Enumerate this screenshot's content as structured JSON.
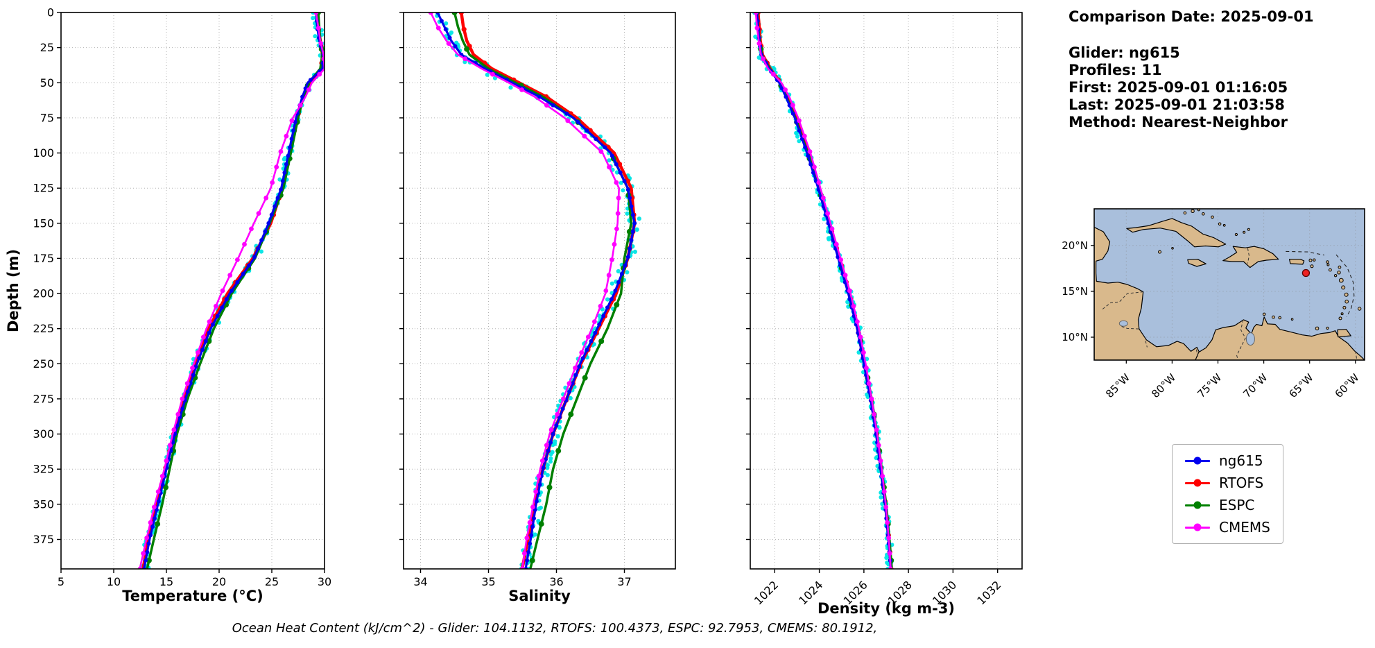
{
  "info": {
    "comparison_date": "Comparison Date: 2025-09-01",
    "glider": "Glider: ng615",
    "profiles": "Profiles: 11",
    "first": "First: 2025-09-01 01:16:05",
    "last": "Last: 2025-09-01 21:03:58",
    "method": "Method: Nearest-Neighbor"
  },
  "caption": {
    "text": "Ocean Heat Content (kJ/cm^2) - Glider: 104.1132,  RTOFS: 100.4373,  ESPC: 92.7953,  CMEMS: 80.1912,"
  },
  "ocean_heat_content": {
    "glider": 104.1132,
    "rtofs": 100.4373,
    "espc": 92.7953,
    "cmems": 80.1912
  },
  "legend": {
    "items": [
      {
        "label": "ng615",
        "color": "#0000ee"
      },
      {
        "label": "RTOFS",
        "color": "#ff0000"
      },
      {
        "label": "ESPC",
        "color": "#008000"
      },
      {
        "label": "CMEMS",
        "color": "#ff00ff"
      }
    ]
  },
  "chart_data": {
    "type": "line",
    "kind": "glider-model-profile-comparison",
    "ylabel": "Depth (m)",
    "ylim": [
      0,
      396
    ],
    "yticks": [
      0,
      25,
      50,
      75,
      100,
      125,
      150,
      175,
      200,
      225,
      250,
      275,
      300,
      325,
      350,
      375
    ],
    "scatter_color": "#00e5e5",
    "depths": [
      0,
      10,
      20,
      30,
      40,
      50,
      60,
      75,
      100,
      125,
      150,
      175,
      200,
      225,
      250,
      275,
      300,
      325,
      350,
      375,
      395
    ],
    "panels": [
      {
        "id": "temperature",
        "xlabel": "Temperature (°C)",
        "xlim": [
          5,
          30
        ],
        "xticks": [
          5,
          10,
          15,
          20,
          25,
          30
        ],
        "rotate_xticks": false,
        "series": [
          {
            "name": "ng615",
            "color": "#0000ee",
            "values": [
              29.2,
              29.3,
              29.5,
              29.9,
              29.8,
              28.4,
              27.9,
              27.3,
              26.6,
              25.9,
              24.7,
              23.3,
              21.0,
              19.2,
              17.9,
              16.8,
              15.8,
              15.0,
              14.2,
              13.4,
              12.9
            ]
          },
          {
            "name": "RTOFS",
            "color": "#ff0000",
            "values": [
              29.3,
              29.4,
              29.6,
              29.8,
              29.7,
              28.6,
              28.0,
              27.4,
              26.7,
              26.0,
              24.9,
              23.2,
              20.8,
              19.0,
              17.8,
              16.7,
              15.7,
              14.9,
              14.1,
              13.3,
              12.8
            ]
          },
          {
            "name": "ESPC",
            "color": "#008000",
            "values": [
              29.4,
              29.5,
              29.6,
              29.8,
              29.6,
              28.5,
              28.0,
              27.5,
              26.8,
              26.1,
              24.8,
              23.4,
              21.2,
              19.5,
              18.2,
              17.0,
              16.0,
              15.3,
              14.6,
              13.8,
              13.2
            ]
          },
          {
            "name": "CMEMS",
            "color": "#ff00ff",
            "values": [
              29.2,
              29.4,
              29.6,
              29.9,
              30.0,
              28.8,
              28.2,
              27.0,
              25.8,
              24.9,
              23.3,
              21.8,
              20.2,
              18.8,
              17.6,
              16.5,
              15.6,
              14.8,
              13.9,
              13.1,
              12.5
            ]
          }
        ]
      },
      {
        "id": "salinity",
        "xlabel": "Salinity",
        "xlim": [
          33.75,
          37.75
        ],
        "xticks": [
          34,
          35,
          36,
          37
        ],
        "rotate_xticks": false,
        "series": [
          {
            "name": "ng615",
            "color": "#0000ee",
            "values": [
              34.25,
              34.35,
              34.45,
              34.6,
              34.95,
              35.35,
              35.75,
              36.25,
              36.8,
              37.05,
              37.15,
              37.05,
              36.85,
              36.6,
              36.35,
              36.15,
              35.95,
              35.8,
              35.7,
              35.62,
              35.55
            ]
          },
          {
            "name": "RTOFS",
            "color": "#ff0000",
            "values": [
              34.6,
              34.63,
              34.68,
              34.78,
              35.05,
              35.45,
              35.85,
              36.3,
              36.85,
              37.1,
              37.15,
              37.05,
              36.88,
              36.62,
              36.36,
              36.15,
              35.95,
              35.8,
              35.68,
              35.58,
              35.5
            ]
          },
          {
            "name": "ESPC",
            "color": "#008000",
            "values": [
              34.5,
              34.55,
              34.62,
              34.72,
              35.0,
              35.4,
              35.8,
              36.25,
              36.8,
              37.05,
              37.1,
              37.0,
              36.95,
              36.75,
              36.5,
              36.3,
              36.1,
              35.95,
              35.85,
              35.72,
              35.62
            ]
          },
          {
            "name": "CMEMS",
            "color": "#ff00ff",
            "values": [
              34.15,
              34.25,
              34.38,
              34.55,
              34.9,
              35.3,
              35.68,
              36.12,
              36.68,
              36.92,
              36.9,
              36.82,
              36.72,
              36.52,
              36.3,
              36.1,
              35.9,
              35.76,
              35.66,
              35.56,
              35.5
            ]
          }
        ]
      },
      {
        "id": "density",
        "xlabel": "Density (kg m-3)",
        "xlim": [
          1020.9,
          1033.1
        ],
        "xticks": [
          1022,
          1024,
          1026,
          1028,
          1030,
          1032
        ],
        "rotate_xticks": true,
        "series": [
          {
            "name": "ng615",
            "color": "#0000ee",
            "values": [
              1021.2,
              1021.25,
              1021.3,
              1021.4,
              1021.75,
              1022.2,
              1022.5,
              1022.9,
              1023.45,
              1023.95,
              1024.4,
              1024.85,
              1025.3,
              1025.7,
              1026.0,
              1026.3,
              1026.55,
              1026.75,
              1026.95,
              1027.1,
              1027.2
            ]
          },
          {
            "name": "RTOFS",
            "color": "#ff0000",
            "values": [
              1021.25,
              1021.3,
              1021.35,
              1021.45,
              1021.8,
              1022.25,
              1022.55,
              1022.95,
              1023.5,
              1024.0,
              1024.45,
              1024.9,
              1025.35,
              1025.72,
              1026.02,
              1026.32,
              1026.57,
              1026.77,
              1026.97,
              1027.12,
              1027.22
            ]
          },
          {
            "name": "ESPC",
            "color": "#008000",
            "values": [
              1021.2,
              1021.25,
              1021.32,
              1021.42,
              1021.78,
              1022.22,
              1022.52,
              1022.92,
              1023.48,
              1023.98,
              1024.42,
              1024.88,
              1025.32,
              1025.74,
              1026.05,
              1026.35,
              1026.6,
              1026.8,
              1027.0,
              1027.15,
              1027.25
            ]
          },
          {
            "name": "CMEMS",
            "color": "#ff00ff",
            "values": [
              1021.15,
              1021.2,
              1021.28,
              1021.38,
              1021.7,
              1022.3,
              1022.65,
              1023.05,
              1023.6,
              1024.05,
              1024.5,
              1024.95,
              1025.4,
              1025.78,
              1026.08,
              1026.35,
              1026.6,
              1026.8,
              1026.98,
              1027.12,
              1027.2
            ]
          }
        ]
      }
    ],
    "map": {
      "extent": {
        "lon": [
          -88.5,
          -59
        ],
        "lat": [
          7.5,
          24
        ]
      },
      "lon_ticks": [
        -85,
        -80,
        -75,
        -70,
        -65,
        -60
      ],
      "lon_tick_labels": [
        "85°W",
        "80°W",
        "75°W",
        "70°W",
        "65°W",
        "60°W"
      ],
      "lat_ticks": [
        10,
        15,
        20
      ],
      "lat_tick_labels": [
        "10°N",
        "15°N",
        "20°N"
      ],
      "marker": {
        "lon": -65.4,
        "lat": 17.0,
        "color": "#ee2222"
      },
      "ocean_color": "#a9bfdc",
      "land_color": "#d9b98c"
    }
  }
}
